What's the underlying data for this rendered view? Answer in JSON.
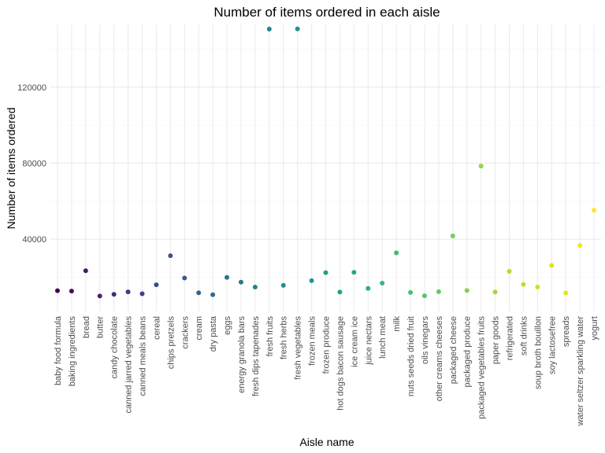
{
  "chart_data": {
    "type": "scatter",
    "title": "Number of items ordered in each aisle",
    "xlabel": "Aisle name",
    "ylabel": "Number of items ordered",
    "ylim": [
      2000,
      153000
    ],
    "yticks": [
      40000,
      80000,
      120000
    ],
    "ytick_labels": [
      "40000",
      "80000",
      "120000"
    ],
    "grid": true,
    "color_scale": "viridis",
    "categories": [
      "baby food formula",
      "baking ingredients",
      "bread",
      "butter",
      "candy chocolate",
      "canned jarred vegetables",
      "canned meals beans",
      "cereal",
      "chips pretzels",
      "crackers",
      "cream",
      "dry pasta",
      "eggs",
      "energy granola bars",
      "fresh dips tapenades",
      "fresh fruits",
      "fresh herbs",
      "fresh vegetables",
      "frozen meals",
      "frozen produce",
      "hot dogs bacon sausage",
      "ice cream ice",
      "juice nectars",
      "lunch meat",
      "milk",
      "nuts seeds dried fruit",
      "oils vinegars",
      "other creams cheeses",
      "packaged cheese",
      "packaged produce",
      "packaged vegetables fruits",
      "paper goods",
      "refrigerated",
      "soft drinks",
      "soup broth bouillon",
      "soy lactosefree",
      "spreads",
      "water seltzer sparkling water",
      "yogurt"
    ],
    "values": [
      12900,
      12700,
      23400,
      10100,
      11000,
      12300,
      11300,
      16000,
      31300,
      19600,
      11800,
      10800,
      19900,
      17400,
      14800,
      150500,
      15700,
      150600,
      18200,
      22400,
      12200,
      22600,
      14100,
      16900,
      32800,
      12000,
      10200,
      12400,
      41700,
      13000,
      78500,
      12200,
      23100,
      16200,
      14800,
      26200,
      11700,
      36700,
      55200
    ],
    "colors": [
      "#440154",
      "#470d60",
      "#48186a",
      "#482374",
      "#472d7b",
      "#453781",
      "#424086",
      "#3e4989",
      "#3b528b",
      "#375a8c",
      "#33638d",
      "#306a8e",
      "#2d718e",
      "#2a788e",
      "#277f8e",
      "#25858e",
      "#228c8d",
      "#21918c",
      "#1f988b",
      "#1fa088",
      "#20a486",
      "#24aa83",
      "#2ab07f",
      "#31b57b",
      "#3bbb75",
      "#48c16e",
      "#55c568",
      "#63cb5f",
      "#72d056",
      "#81d34d",
      "#90d743",
      "#a0da39",
      "#b2dd2d",
      "#c0df25",
      "#d0e11c",
      "#dfe318",
      "#e7e419",
      "#f1e51d",
      "#fde725"
    ]
  }
}
